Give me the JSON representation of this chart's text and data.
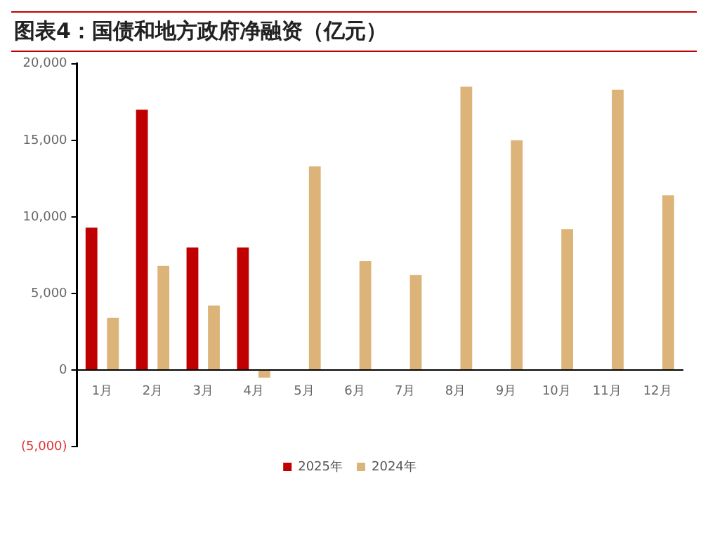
{
  "chart_data": {
    "type": "bar",
    "title": "图表4：国债和地方政府净融资（亿元）",
    "categories": [
      "1月",
      "2月",
      "3月",
      "4月",
      "5月",
      "6月",
      "7月",
      "8月",
      "9月",
      "10月",
      "11月",
      "12月"
    ],
    "series": [
      {
        "name": "2025年",
        "color": "#c00000",
        "values": [
          9300,
          17000,
          8000,
          8000,
          null,
          null,
          null,
          null,
          null,
          null,
          null,
          null
        ]
      },
      {
        "name": "2024年",
        "color": "#dcb47a",
        "values": [
          3400,
          6800,
          4200,
          -500,
          13300,
          7100,
          6200,
          18500,
          15000,
          9200,
          18300,
          11400
        ]
      }
    ],
    "ylim": [
      -5000,
      20000
    ],
    "yticks": [
      {
        "value": -5000,
        "label": "(5,000)"
      },
      {
        "value": 0,
        "label": "0"
      },
      {
        "value": 5000,
        "label": "5,000"
      },
      {
        "value": 10000,
        "label": "10,000"
      },
      {
        "value": 15000,
        "label": "15,000"
      },
      {
        "value": 20000,
        "label": "20,000"
      }
    ],
    "grid": false,
    "legend": "bottom"
  }
}
